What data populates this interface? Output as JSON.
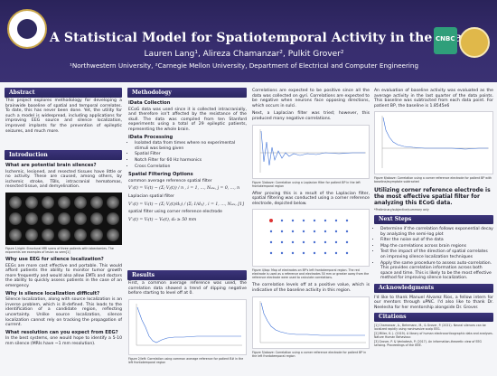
{
  "header": {
    "title": "A Statistical Model for Spatiotemporal Activity in the Brain",
    "authors": "Lauren Lang¹, Alireza Chamanzar², Pulkit Grover²",
    "affiliations": "¹Northwestern University, ²Carnegie Mellon University, Department of Electrical and Computer Engineering",
    "logo_right_text": "CNBC"
  },
  "abstract": {
    "heading": "Abstract",
    "text": "This project explores methodology for developing a brainwide baseline of spatial and temporal correlates. To date, this has never been done. Yet, the utility for such a model is widespread, including applications for improving EEG source and silence localization, improved implants for the prevention of epileptic seizures, and much more."
  },
  "introduction": {
    "heading": "Introduction",
    "q1": "What are potential brain silences?",
    "q1_text": "Ischemic, lesioned, and resected tissues have little or no activity. These are caused, among others, by ischemic stroke, TBIs, intracranial hematomas, resected tissue, and demyelination.",
    "fig1_caption": "Figure 1/right: Structural MRI scans of three patients with lobectomies. The exponents are examples of lesion as seen[1]",
    "q2": "Why use EEG for silence localization?",
    "q2_text": "EEGs are more cost effective and portable. This would afford patients the ability to monitor tumor growth more frequently and would also allow EMTs and doctors the ability to quickly assess patients in the case of an emergency.",
    "q3": "Why is silence localization difficult?",
    "q3_text": "Silence localization, along with source localization is an inverse problem, which is ill-defined. This leads to the identification of a candidate region, reflecting uncertainty. Unlike source localization, silence localization cannot rely on tracking the propagation of current.",
    "q4": "What resolution can you expect from EEG?",
    "q4_text": "In the best systems, one would hope to identify a 5-10 mm silence (MRIs have ~1 mm resolution)."
  },
  "methodology": {
    "heading": "Methodology",
    "data_collection_h": "iData Collection",
    "data_collection_text": "ECoG data was used since it is collected intracranially, and therefore isn't affected by the resistance of the skull. The data was compiled from ten Stanford experiments using a total of 29 epileptic patients, representing the whole brain.",
    "processing_h": "iData Processing",
    "processing_items": [
      "Isolated data from times where no experimental stimuli was being given",
      "Spatial Filter",
      "Notch Filter for 60 Hz harmonics",
      "Cross Correlation"
    ],
    "spatial_h": "Spatial Filtering Options",
    "car_label": "common average reference spatial filter",
    "laplacian_label": "Laplacian spatial filter",
    "cer_label": "spatial filter using corner reference electrode",
    "eq1": "V'ᵢ(t) = Vᵢ(t) − (Σⱼ Vⱼ(t)) / n ,  i = 1, …, Nₑₗₑ, j = 0, …, n",
    "eq2": "V'ᵢ(t) = Vᵢ(t) − (Σⱼ Vⱼ(t)/dᵢⱼ) / (Σⱼ 1/dᵢⱼ) ,  i = 1, …, Nₑₗₑ, [1]",
    "eq3": "V'ᵢ(t) = Vᵢ(t) − V₀(t), d₀ ≥ 50 mm"
  },
  "results": {
    "heading": "Results",
    "text": "First, a common average reference was used, the correlation data showed a trend of dipping negative before starting to level off at 0.",
    "fig2_caption": "Figure 2/left: Correlation using common average reference for patient B# in the left frontotemporal region"
  },
  "col3": {
    "text1": "Correlations are expected to be positive since all the data was collected on gyri. Correlations are expected to be negative when neurons face opposing directions, which occurs in sulci.",
    "text2": "Next, a Laplacian filter was tried; however, this produced many negative correlations.",
    "fig3_caption": "Figure 3/above: Correlation using a Laplacian filter for patient BP in the left frontotemporal region",
    "text3": "After proving this is a result of the Laplacian filter, spatial filtering was conducted using a corner reference electrode, depicted below.",
    "fig4_caption": "Figure 4/top: Map of electrodes on BP's left frontotemporal region. The red electrode is used as a reference and electrodes 50 mm or greater away from the reference electrode were used to calculate correlations.",
    "text4": "The correlation levels off at a positive value, which is indicative of the baseline activity in this region.",
    "fig5_caption": "Figure 5/above: Correlation using a corner reference electrode for patient BP in the left frontotemporal region"
  },
  "col4": {
    "text1": "An evaluation of baseline activity was evaluated as the average activity in the last quarter of the data points. This baseline was subtracted from each data point. For patient BP, the baseline is 1.8545e6",
    "fig6_caption": "Figure 6/above: Correlation using a corner reference electrode for patient BP with baseline/asymptote subtracted",
    "highlight": "Utilizing corner reference electrode is the most effective spatial filter for analyzing this ECoG data.",
    "highlight_note": "*Preliminary/subjective/summary only",
    "next_heading": "Next Steps",
    "next_items": [
      "Determine if the correlation follows exponential decay by analyzing the semi-log plot",
      "Filter the noise out of the data",
      "Map the correlations across brain regions",
      "Test the impact of the direction of spatial correlates on improving silence localization techniques",
      "Apply the same procedure to assess auto-correlation. This provides correlation information across both space and time. This is likely to be the most effective method for improving silence localization."
    ],
    "ack_heading": "Acknowledgments",
    "ack_text": "I'd like to thank Manuel Alvarez Rios, a fellow intern for our mentors through uPNC. I'd also like to thank Dr. Neelesha for her mentorship alongside Dr. Grover.",
    "cit_heading": "Citations",
    "citations": [
      "[1] Chamanzar, A., Behrmann, M., & Grover, P. (2021). Neural silences can be localized rapidly using noninvasive scalp EEG.",
      "[2] Miller, K. J. (2019). A library of human electrocorticographic data and analyses. Nature Human Behaviour.",
      "[3] Grover, P. & Venkatesh, P. (2017). An information-theoretic view of EEG sensing. Proceedings of the IEEE."
    ]
  }
}
